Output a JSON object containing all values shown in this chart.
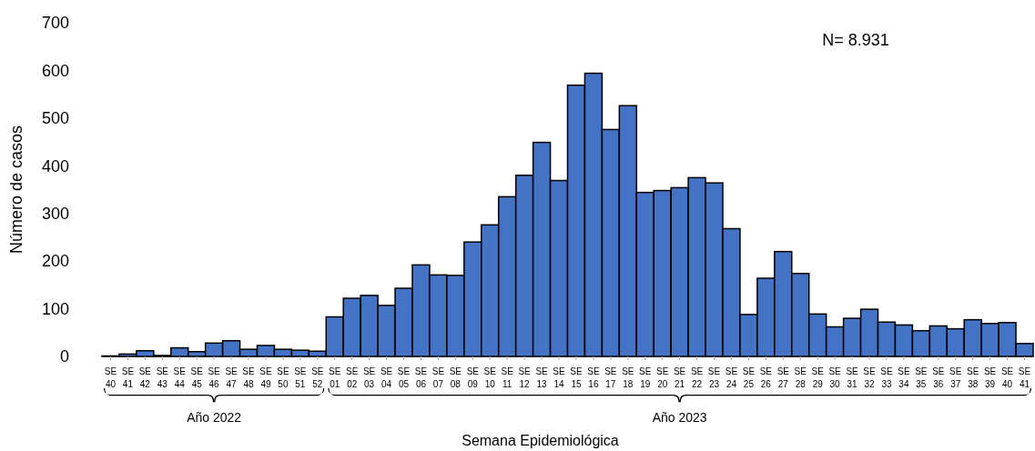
{
  "chart_data": {
    "type": "bar",
    "xlabel": "Semana Epidemiológica",
    "ylabel": "Número de casos",
    "categories": [
      "SE 40",
      "SE 41",
      "SE 42",
      "SE 43",
      "SE 44",
      "SE 45",
      "SE 46",
      "SE 47",
      "SE 48",
      "SE 49",
      "SE 50",
      "SE 51",
      "SE 52",
      "SE 01",
      "SE 02",
      "SE 03",
      "SE 04",
      "SE 05",
      "SE 06",
      "SE 07",
      "SE 08",
      "SE 09",
      "SE 10",
      "SE 11",
      "SE 12",
      "SE 13",
      "SE 14",
      "SE 15",
      "SE 16",
      "SE 17",
      "SE 18",
      "SE 19",
      "SE 20",
      "SE 21",
      "SE 22",
      "SE 23",
      "SE 24",
      "SE 25",
      "SE 26",
      "SE 27",
      "SE 28",
      "SE 29",
      "SE 30",
      "SE 31",
      "SE 32",
      "SE 33",
      "SE 34",
      "SE 35",
      "SE 36",
      "SE 37",
      "SE 38",
      "SE 39",
      "SE 40",
      "SE 41"
    ],
    "values": [
      1,
      5,
      12,
      2,
      18,
      10,
      28,
      33,
      15,
      23,
      15,
      13,
      11,
      83,
      122,
      128,
      107,
      143,
      192,
      171,
      170,
      240,
      276,
      335,
      380,
      449,
      369,
      569,
      594,
      476,
      526,
      344,
      348,
      354,
      375,
      364,
      268,
      88,
      164,
      220,
      174,
      89,
      62,
      80,
      99,
      72,
      66,
      54,
      64,
      58,
      77,
      69,
      71,
      27
    ],
    "color": "#4472c4",
    "ylim": [
      0,
      700
    ],
    "yticks": [
      0,
      100,
      200,
      300,
      400,
      500,
      600,
      700
    ],
    "grid": false,
    "annotations": [
      "N= 8.931",
      "Año 2022",
      "Año 2023"
    ]
  }
}
